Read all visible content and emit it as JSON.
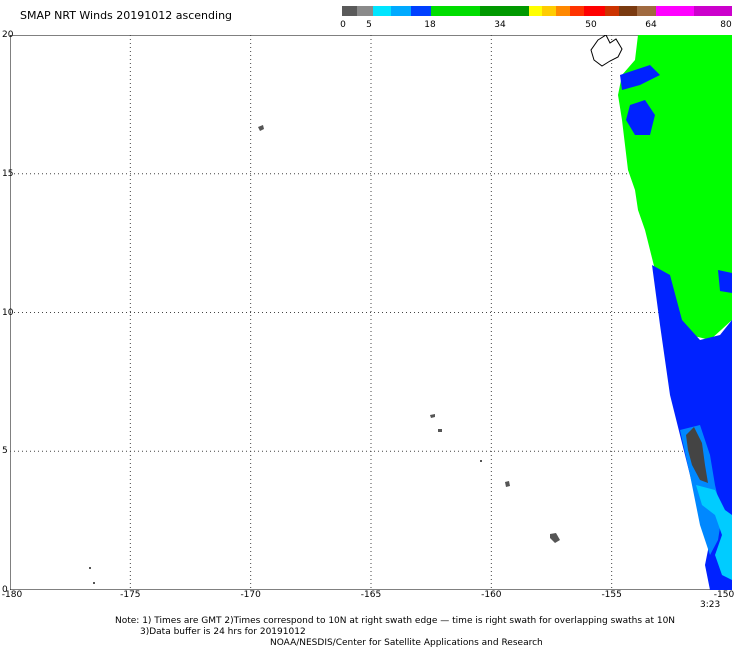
{
  "title": "SMAP NRT Winds 20191012 ascending",
  "colorbar": {
    "labels": [
      "0",
      "5",
      "18",
      "34",
      "50",
      "64",
      "80"
    ],
    "segments": [
      {
        "color": "#5a5a5a",
        "flex": 1
      },
      {
        "color": "#8a8a8a",
        "flex": 1
      },
      {
        "color": "#00e5ff",
        "flex": 1.2
      },
      {
        "color": "#00aaff",
        "flex": 1.3
      },
      {
        "color": "#0040ff",
        "flex": 1.3
      },
      {
        "color": "#00dd00",
        "flex": 3.2
      },
      {
        "color": "#009900",
        "flex": 3.2
      },
      {
        "color": "#ffff00",
        "flex": 0.9
      },
      {
        "color": "#ffcc00",
        "flex": 0.9
      },
      {
        "color": "#ff8800",
        "flex": 0.9
      },
      {
        "color": "#ff3300",
        "flex": 0.9
      },
      {
        "color": "#ff0000",
        "flex": 1.4
      },
      {
        "color": "#cc3300",
        "flex": 0.9
      },
      {
        "color": "#7a3a10",
        "flex": 1.2
      },
      {
        "color": "#a06a40",
        "flex": 1.2
      },
      {
        "color": "#ff00ff",
        "flex": 2.5
      },
      {
        "color": "#cc00cc",
        "flex": 2.5
      }
    ]
  },
  "map": {
    "lat_ticks": [
      "20",
      "15",
      "10",
      "5",
      "0"
    ],
    "lon_ticks": [
      "-180",
      "-175",
      "-170",
      "-165",
      "-160",
      "-155",
      "-150"
    ],
    "lat_range": [
      0,
      20
    ],
    "lon_range": [
      -180,
      -150
    ],
    "land_color": "#555555",
    "colors": {
      "strong": "#00ff00",
      "moderate": "#0022ff",
      "light_blue": "#0088ff",
      "cyan": "#00ccff",
      "land": "#444444"
    }
  },
  "time_label": "3:23",
  "notes": {
    "line1": "Note: 1) Times are GMT 2)Times correspond to 10N at right swath edge — time is right swath for overlapping swaths at 10N",
    "line2": "3)Data buffer is 24 hrs for 20191012",
    "line3": "NOAA/NESDIS/Center for Satellite Applications and Research"
  }
}
